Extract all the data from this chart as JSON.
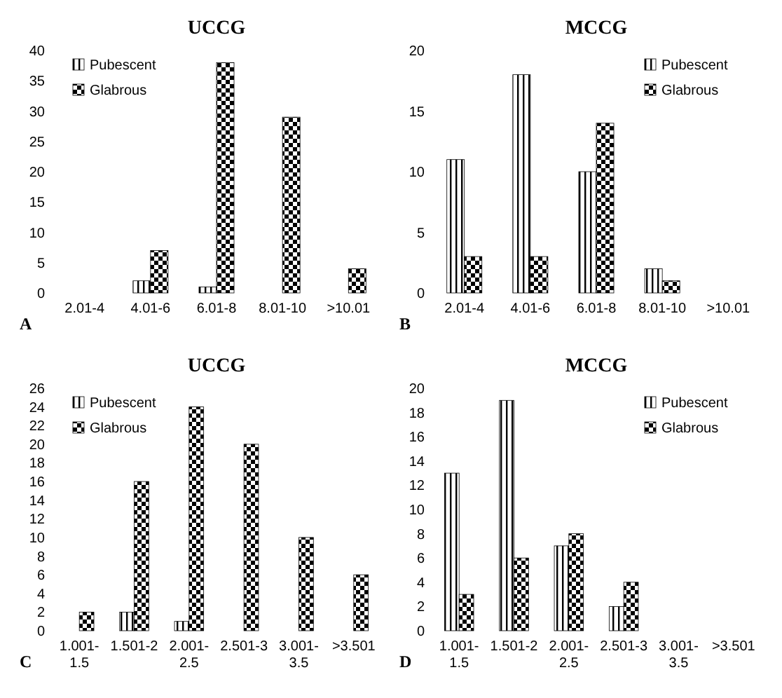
{
  "chart_data": [
    {
      "type": "bar",
      "title": "UCCG",
      "categories": [
        "2.01-4",
        "4.01-6",
        "6.01-8",
        "8.01-10",
        ">10.01"
      ],
      "series": [
        {
          "name": "Pubescent",
          "color": "#000000",
          "values": [
            0,
            2,
            1,
            0,
            0
          ]
        },
        {
          "name": "Glabrous",
          "color": "#000000",
          "values": [
            0,
            7,
            38,
            29,
            4
          ]
        }
      ],
      "ylim": [
        0,
        40
      ],
      "yticks": [
        0,
        5,
        10,
        15,
        20,
        25,
        30,
        35,
        40
      ],
      "legend": "top left",
      "annotations": [
        "A"
      ]
    },
    {
      "type": "bar",
      "title": "MCCG",
      "categories": [
        "2.01-4",
        "4.01-6",
        "6.01-8",
        "8.01-10",
        ">10.01"
      ],
      "series": [
        {
          "name": "Pubescent",
          "color": "#000000",
          "values": [
            11,
            18,
            10,
            2,
            0
          ]
        },
        {
          "name": "Glabrous",
          "color": "#000000",
          "values": [
            3,
            3,
            14,
            1,
            0
          ]
        }
      ],
      "ylim": [
        0,
        20
      ],
      "yticks": [
        0,
        5,
        10,
        15,
        20
      ],
      "legend": "top right",
      "annotations": [
        "B"
      ]
    },
    {
      "type": "bar",
      "title": "UCCG",
      "categories": [
        "1.001-1.5",
        "1.501-2",
        "2.001-2.5",
        "2.501-3",
        "3.001-3.5",
        ">3.501"
      ],
      "series": [
        {
          "name": "Pubescent",
          "color": "#000000",
          "values": [
            0,
            2,
            1,
            0,
            0,
            0
          ]
        },
        {
          "name": "Glabrous",
          "color": "#000000",
          "values": [
            2,
            16,
            24,
            20,
            10,
            6
          ]
        }
      ],
      "ylim": [
        0,
        26
      ],
      "yticks": [
        0,
        2,
        4,
        6,
        8,
        10,
        12,
        14,
        16,
        18,
        20,
        22,
        24,
        26
      ],
      "legend": "top left",
      "annotations": [
        "C"
      ]
    },
    {
      "type": "bar",
      "title": "MCCG",
      "categories": [
        "1.001-1.5",
        "1.501-2",
        "2.001-2.5",
        "2.501-3",
        "3.001-3.5",
        ">3.501"
      ],
      "series": [
        {
          "name": "Pubescent",
          "color": "#000000",
          "values": [
            13,
            19,
            7,
            2,
            0,
            0
          ]
        },
        {
          "name": "Glabrous",
          "color": "#000000",
          "values": [
            3,
            6,
            8,
            4,
            0,
            0
          ]
        }
      ],
      "ylim": [
        0,
        20
      ],
      "yticks": [
        0,
        2,
        4,
        6,
        8,
        10,
        12,
        14,
        16,
        18,
        20
      ],
      "legend": "top right",
      "annotations": [
        "D"
      ]
    }
  ]
}
